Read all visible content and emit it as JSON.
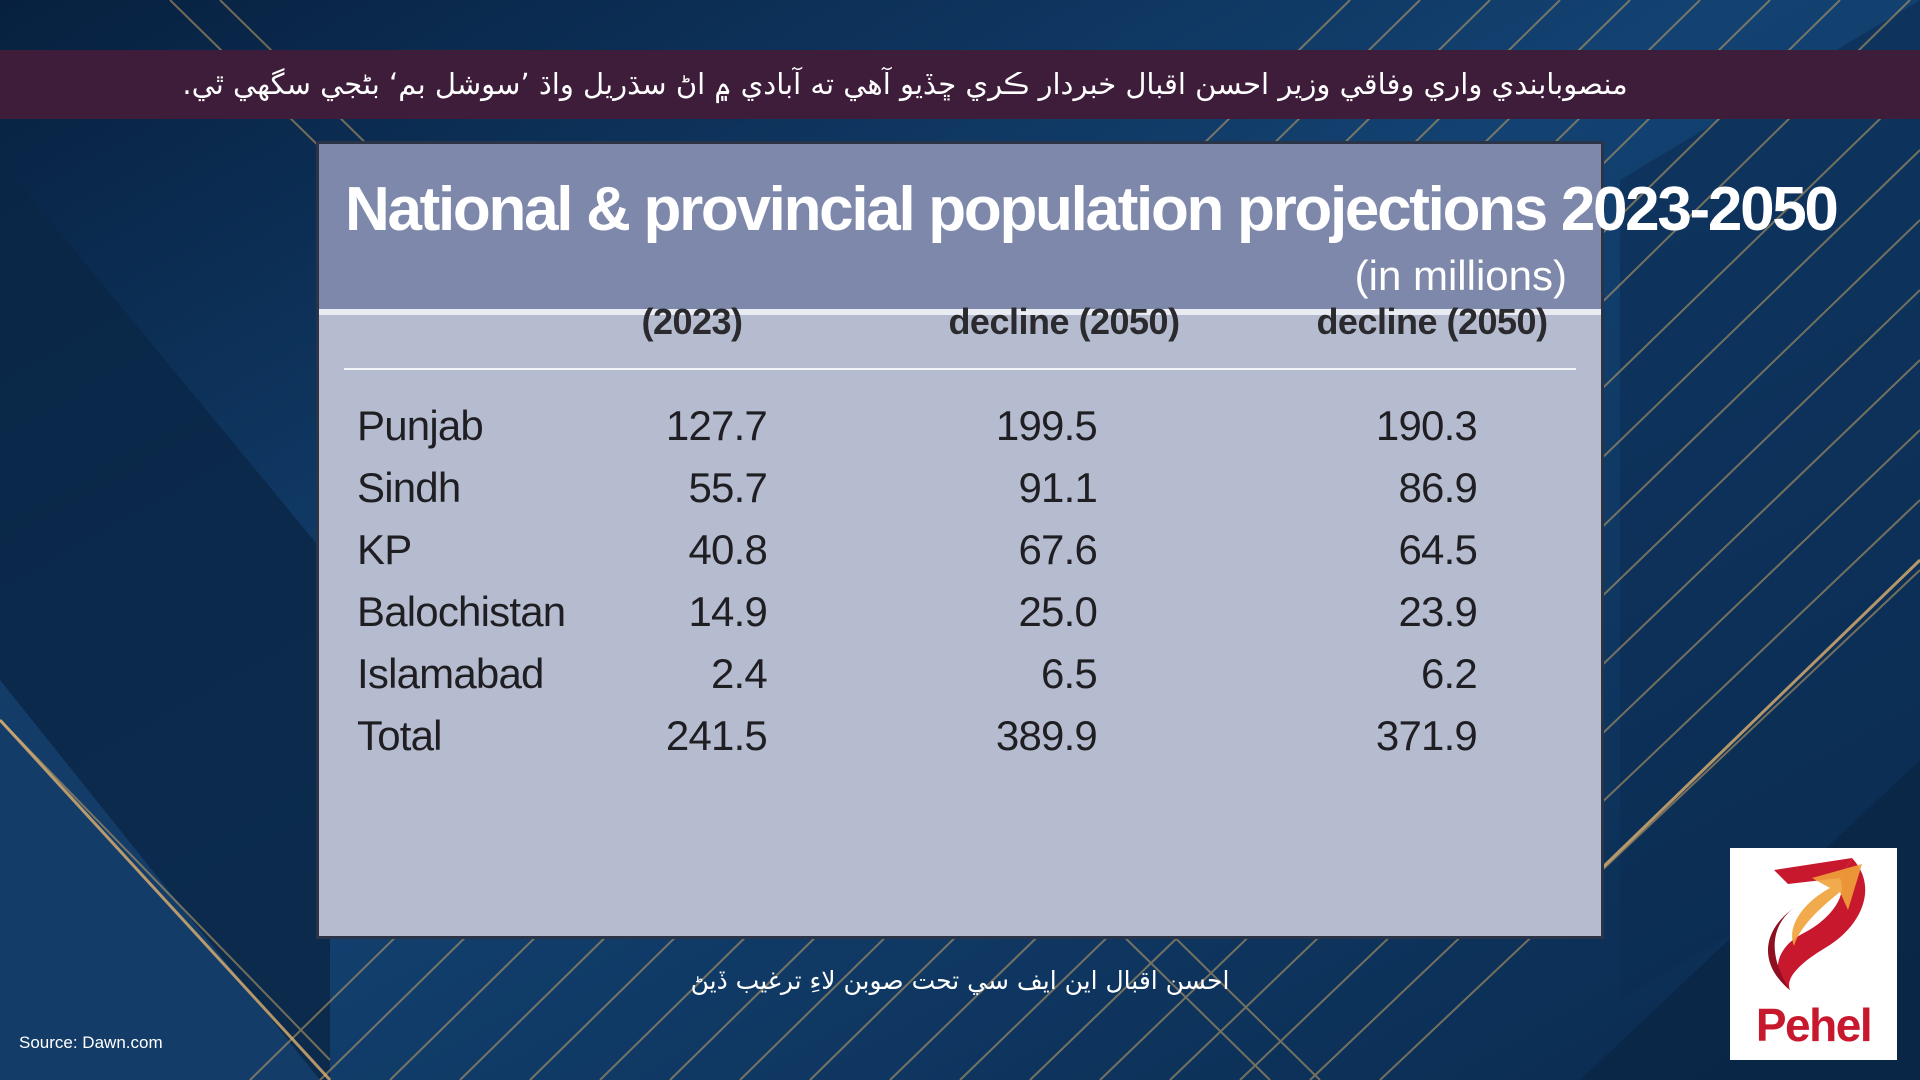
{
  "ticker": {
    "text": "منصوبابندي واري وفاقي وزير احسن اقبال خبردار ڪري ڇڏيو آهي ته آبادي ۾ اڻ سڌريل واڌ ’سوشل بم‘ بڻجي سگهي ٿي."
  },
  "caption": {
    "text": "احسن اقبال اين ايف سي تحت صوبن لاءِ ترغيب ڏيڻ"
  },
  "source": {
    "text": "Source: Dawn.com"
  },
  "logo": {
    "name": "Pehel",
    "primary_color": "#c8182e",
    "accent_color": "#f0a23a"
  },
  "colors": {
    "panel_body": "#b6bccf",
    "panel_header": "#7e88aa",
    "ticker_bar": "#3e1d3a",
    "background": "#0d2f55",
    "stripe_accent": "#c9a465"
  },
  "chart_data": {
    "type": "table",
    "title": "National & provincial population projections 2023-2050",
    "subtitle": "(in millions)",
    "columns": [
      "",
      "(2023)",
      "decline (2050)",
      "decline (2050)"
    ],
    "rows": [
      {
        "label": "Punjab",
        "values": [
          "127.7",
          "199.5",
          "190.3"
        ]
      },
      {
        "label": "Sindh",
        "values": [
          "55.7",
          "91.1",
          "86.9"
        ]
      },
      {
        "label": "KP",
        "values": [
          "40.8",
          "67.6",
          "64.5"
        ]
      },
      {
        "label": "Balochistan",
        "values": [
          "14.9",
          "25.0",
          "23.9"
        ]
      },
      {
        "label": "Islamabad",
        "values": [
          "2.4",
          "6.5",
          "6.2"
        ]
      },
      {
        "label": "Total",
        "values": [
          "241.5",
          "389.9",
          "371.9"
        ]
      }
    ]
  }
}
